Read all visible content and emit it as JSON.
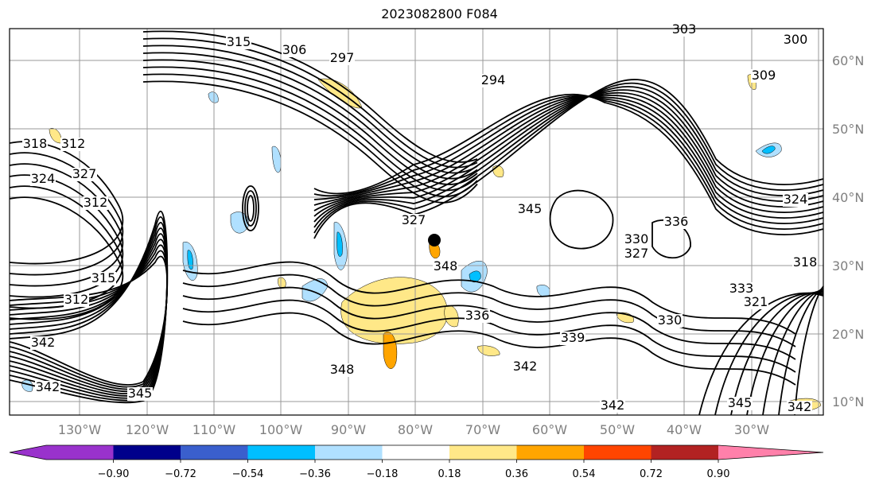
{
  "title": "2023082800 F084",
  "map": {
    "lon_labels": [
      "130°W",
      "120°W",
      "110°W",
      "100°W",
      "90°W",
      "80°W",
      "70°W",
      "60°W",
      "50°W",
      "40°W",
      "30°W"
    ],
    "lat_labels": [
      "60°N",
      "50°N",
      "40°N",
      "30°N",
      "20°N",
      "10°N"
    ],
    "contour_labels": [
      "315",
      "297",
      "306",
      "294",
      "300",
      "309",
      "318",
      "312",
      "324",
      "327",
      "315",
      "312",
      "342",
      "342",
      "345",
      "348",
      "345",
      "327",
      "330",
      "336",
      "327",
      "324",
      "318",
      "321",
      "333",
      "330",
      "336",
      "339",
      "342",
      "342",
      "345",
      "342",
      "348",
      "312",
      "303"
    ]
  },
  "colorbar": {
    "tick_labels": [
      "−0.90",
      "−0.72",
      "−0.54",
      "−0.36",
      "−0.18",
      "0.18",
      "0.36",
      "0.54",
      "0.72",
      "0.90"
    ],
    "colors": [
      "#9932cc",
      "#00008b",
      "#3a5fcd",
      "#00bfff",
      "#b0e0ff",
      "#ffffff",
      "#ffe888",
      "#ffa500",
      "#ff4500",
      "#b22222",
      "#ff80aa"
    ]
  }
}
